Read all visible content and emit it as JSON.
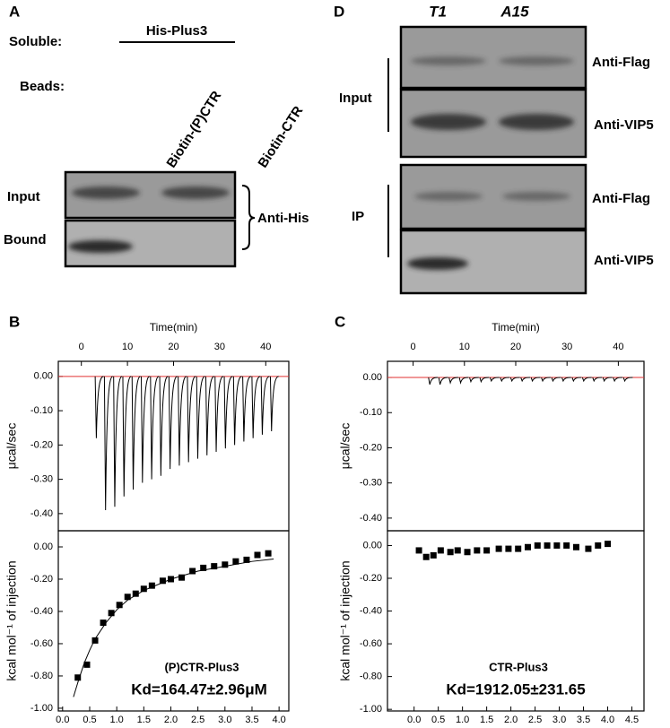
{
  "panel_a": {
    "label": "A",
    "soluble": "Soluble:",
    "protein": "His-Plus3",
    "beads": "Beads:",
    "lanes": [
      "Biotin-(P)CTR",
      "Biotin-CTR"
    ],
    "rows": [
      "Input",
      "Bound"
    ],
    "antibody": "Anti-His"
  },
  "panel_d": {
    "label": "D",
    "lanes": [
      "T1",
      "A15"
    ],
    "groups": [
      "Input",
      "IP"
    ],
    "antibodies": [
      "Anti-Flag",
      "Anti-VIP5",
      "Anti-Flag",
      "Anti-VIP5"
    ]
  },
  "chart_data": [
    {
      "type": "thermogram",
      "panel": "B",
      "title": "Time(min)",
      "ylabel": "μcal/sec",
      "color": "#000000",
      "baseline": 0,
      "baseline_color": "#e03030",
      "x": [
        3,
        5,
        7,
        9,
        11,
        13,
        15,
        17,
        19,
        21,
        23,
        25,
        27,
        29,
        31,
        33,
        35,
        37,
        39,
        41
      ],
      "values": [
        -0.18,
        -0.39,
        -0.38,
        -0.35,
        -0.33,
        -0.31,
        -0.3,
        -0.29,
        -0.27,
        -0.26,
        -0.25,
        -0.24,
        -0.23,
        -0.22,
        -0.21,
        -0.2,
        -0.19,
        -0.18,
        -0.17,
        -0.16
      ],
      "xlim": [
        -5,
        45
      ],
      "xticks": [
        0,
        10,
        20,
        30,
        40
      ],
      "ylim": [
        -0.45,
        0.044
      ],
      "yticks": [
        {
          "value": 0,
          "label": "0.00"
        },
        {
          "value": -0.1,
          "label": "-0.10"
        },
        {
          "value": -0.2,
          "label": "-0.20"
        },
        {
          "value": -0.3,
          "label": "-0.30"
        },
        {
          "value": -0.4,
          "label": "-0.40"
        }
      ]
    },
    {
      "type": "scatter",
      "ylabel": "kcal mol⁻¹ of injection",
      "color": "#000000",
      "x": [
        0.28,
        0.45,
        0.6,
        0.75,
        0.9,
        1.05,
        1.2,
        1.35,
        1.5,
        1.65,
        1.85,
        2.0,
        2.2,
        2.4,
        2.6,
        2.8,
        3.0,
        3.2,
        3.4,
        3.6,
        3.8
      ],
      "values": [
        -0.81,
        -0.73,
        -0.58,
        -0.47,
        -0.41,
        -0.36,
        -0.31,
        -0.29,
        -0.26,
        -0.24,
        -0.21,
        -0.2,
        -0.19,
        -0.15,
        -0.13,
        -0.12,
        -0.11,
        -0.09,
        -0.08,
        -0.05,
        -0.04
      ],
      "fit": {
        "x": [
          0.2,
          0.3,
          0.4,
          0.5,
          0.6,
          0.8,
          1.0,
          1.2,
          1.5,
          2.0,
          2.5,
          3.0,
          3.5,
          3.9
        ],
        "values": [
          -0.93,
          -0.82,
          -0.72,
          -0.64,
          -0.57,
          -0.47,
          -0.39,
          -0.33,
          -0.27,
          -0.2,
          -0.15,
          -0.12,
          -0.09,
          -0.075
        ]
      },
      "annotations": [
        "(P)CTR-Plus3",
        "Kd=164.47±2.96μM"
      ],
      "xlim": [
        -0.08,
        4.18
      ],
      "xticks": [
        {
          "value": 0,
          "label": "0.0"
        },
        0.5,
        {
          "value": 1,
          "label": "1.0"
        },
        1.5,
        {
          "value": 2,
          "label": "2.0"
        },
        2.5,
        {
          "value": 3,
          "label": "3.0"
        },
        3.5,
        {
          "value": 4,
          "label": "4.0"
        }
      ],
      "ylim": [
        -1.017,
        0.1
      ],
      "yticks": [
        {
          "value": 0,
          "label": "0.00"
        },
        {
          "value": -0.2,
          "label": "-0.20"
        },
        {
          "value": -0.4,
          "label": "-0.40"
        },
        {
          "value": -0.6,
          "label": "-0.60"
        },
        {
          "value": -0.8,
          "label": "-0.80"
        },
        {
          "value": -1,
          "label": "-1.00"
        }
      ]
    },
    {
      "type": "thermogram",
      "panel": "C",
      "title": "Time(min)",
      "ylabel": "μcal/sec",
      "color": "#000000",
      "baseline": 0,
      "baseline_color": "#e03030",
      "x": [
        3,
        5,
        7,
        9,
        11,
        13,
        15,
        17,
        19,
        21,
        23,
        25,
        27,
        29,
        31,
        33,
        35,
        37,
        39,
        41
      ],
      "values": [
        -0.02,
        -0.02,
        -0.015,
        -0.015,
        -0.012,
        -0.012,
        -0.01,
        -0.01,
        -0.01,
        -0.01,
        -0.01,
        -0.01,
        -0.01,
        -0.01,
        -0.01,
        -0.01,
        -0.01,
        -0.01,
        -0.01,
        -0.01
      ],
      "xlim": [
        -5,
        45
      ],
      "xticks": [
        0,
        10,
        20,
        30,
        40
      ],
      "ylim": [
        -0.436,
        0.046
      ],
      "yticks": [
        {
          "value": 0,
          "label": "0.00"
        },
        {
          "value": -0.1,
          "label": "-0.10"
        },
        {
          "value": -0.2,
          "label": "-0.20"
        },
        {
          "value": -0.3,
          "label": "-0.30"
        },
        {
          "value": -0.4,
          "label": "-0.40"
        }
      ]
    },
    {
      "type": "scatter",
      "ylabel": "kcal mol⁻¹ of injection",
      "color": "#000000",
      "x": [
        0.1,
        0.25,
        0.4,
        0.55,
        0.75,
        0.9,
        1.1,
        1.3,
        1.5,
        1.75,
        1.95,
        2.15,
        2.35,
        2.55,
        2.75,
        2.95,
        3.15,
        3.35,
        3.6,
        3.8,
        4.0
      ],
      "values": [
        -0.03,
        -0.07,
        -0.06,
        -0.03,
        -0.04,
        -0.03,
        -0.04,
        -0.03,
        -0.03,
        -0.02,
        -0.02,
        -0.02,
        -0.01,
        0,
        0,
        0,
        0,
        -0.01,
        -0.02,
        0,
        0.01
      ],
      "annotations": [
        "CTR-Plus3",
        "Kd=1912.05±231.65"
      ],
      "xlim": [
        -0.55,
        4.75
      ],
      "xticks": [
        {
          "value": 0,
          "label": "0.0"
        },
        0.5,
        {
          "value": 1,
          "label": "1.0"
        },
        1.5,
        {
          "value": 2,
          "label": "2.0"
        },
        2.5,
        {
          "value": 3,
          "label": "3.0"
        },
        3.5,
        {
          "value": 4,
          "label": "4.0"
        },
        4.5
      ],
      "ylim": [
        -1.01,
        0.09
      ],
      "yticks": [
        {
          "value": 0,
          "label": "0.00"
        },
        {
          "value": -0.2,
          "label": "-0.20"
        },
        {
          "value": -0.4,
          "label": "-0.40"
        },
        {
          "value": -0.6,
          "label": "-0.60"
        },
        {
          "value": -0.8,
          "label": "-0.80"
        },
        {
          "value": -1,
          "label": "-1.00"
        }
      ]
    }
  ]
}
